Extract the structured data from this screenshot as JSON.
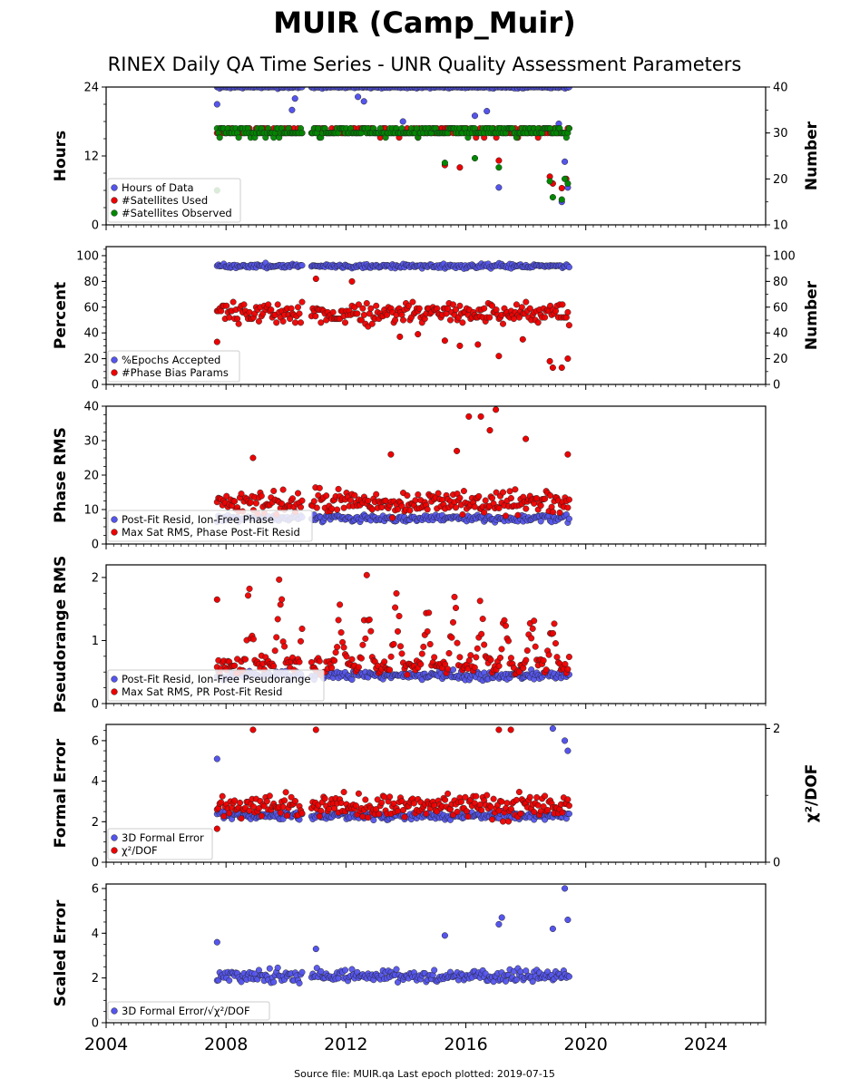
{
  "title": "MUIR (Camp_Muir)",
  "subtitle": "RINEX Daily QA Time Series - UNR Quality Assessment Parameters",
  "footer": "Source file: MUIR.qa Last epoch plotted: 2019-07-15",
  "colors": {
    "blue": "#5555ee",
    "red": "#ee0000",
    "green": "#008800"
  },
  "chart_data": [
    {
      "type": "scatter",
      "ylabel": "Hours",
      "y2label": "Number",
      "ylim": [
        0,
        24
      ],
      "yticks": [
        0,
        12,
        24
      ],
      "y2lim": [
        10,
        40
      ],
      "y2ticks": [
        10,
        20,
        30,
        40
      ],
      "xlim": [
        2004,
        2026
      ],
      "legend_position": "lower-left",
      "series": [
        {
          "name": "Hours of Data",
          "color": "blue",
          "axis": "left",
          "base": 24,
          "noise": 0.2,
          "start": 2007.7,
          "end": 2019.45,
          "outliers": [
            [
              2007.7,
              21
            ],
            [
              2010.2,
              20
            ],
            [
              2010.3,
              22
            ],
            [
              2012.4,
              22.3
            ],
            [
              2012.6,
              21.5
            ],
            [
              2013.9,
              18
            ],
            [
              2016.3,
              19
            ],
            [
              2016.7,
              19.8
            ],
            [
              2017.1,
              6.5
            ],
            [
              2019.1,
              17.6
            ],
            [
              2019.2,
              4
            ],
            [
              2019.3,
              11
            ],
            [
              2019.4,
              6.5
            ]
          ]
        },
        {
          "name": "#Satellites Used",
          "color": "red",
          "axis": "right",
          "base": 30.3,
          "noise": 0.7,
          "start": 2007.7,
          "end": 2019.45,
          "outliers": [
            [
              2015.3,
              23
            ],
            [
              2015.8,
              22.5
            ],
            [
              2017.1,
              24
            ],
            [
              2018.8,
              20.5
            ],
            [
              2018.9,
              19
            ],
            [
              2019.2,
              18
            ],
            [
              2019.35,
              20
            ]
          ]
        },
        {
          "name": "#Satellites Observed",
          "color": "green",
          "axis": "right",
          "base": 30.3,
          "noise": 0.8,
          "start": 2007.7,
          "end": 2019.45,
          "outliers": [
            [
              2007.7,
              17.5
            ],
            [
              2015.3,
              23.5
            ],
            [
              2016.3,
              24.5
            ],
            [
              2017.1,
              22.5
            ],
            [
              2018.8,
              19.5
            ],
            [
              2018.9,
              16
            ],
            [
              2019.2,
              15.5
            ],
            [
              2019.3,
              20
            ],
            [
              2019.4,
              19
            ]
          ]
        }
      ]
    },
    {
      "type": "scatter",
      "ylabel": "Percent",
      "y2label": "Number",
      "ylim": [
        0,
        107
      ],
      "yticks": [
        0,
        20,
        40,
        60,
        80,
        100
      ],
      "y2lim": [
        0,
        107
      ],
      "y2ticks": [
        0,
        20,
        40,
        60,
        80,
        100
      ],
      "xlim": [
        2004,
        2026
      ],
      "legend_position": "lower-left",
      "series": [
        {
          "name": "%Epochs Accepted",
          "color": "blue",
          "axis": "left",
          "base": 92,
          "noise": 1.5,
          "start": 2007.7,
          "end": 2019.45,
          "outliers": []
        },
        {
          "name": "#Phase Bias Params",
          "color": "red",
          "axis": "right",
          "base": 55,
          "noise": 7,
          "start": 2007.7,
          "end": 2019.45,
          "outliers": [
            [
              2007.7,
              33
            ],
            [
              2011.0,
              82
            ],
            [
              2012.2,
              80
            ],
            [
              2013.8,
              37
            ],
            [
              2014.4,
              39
            ],
            [
              2015.3,
              34
            ],
            [
              2015.8,
              30
            ],
            [
              2016.4,
              31
            ],
            [
              2017.1,
              22
            ],
            [
              2017.9,
              35
            ],
            [
              2018.8,
              18
            ],
            [
              2018.9,
              13
            ],
            [
              2019.2,
              13
            ],
            [
              2019.4,
              20
            ]
          ]
        }
      ]
    },
    {
      "type": "scatter",
      "ylabel": "Phase RMS",
      "ylim": [
        0,
        40
      ],
      "yticks": [
        0,
        10,
        20,
        30,
        40
      ],
      "xlim": [
        2004,
        2026
      ],
      "legend_position": "lower-left",
      "series": [
        {
          "name": "Post-Fit Resid, Ion-Free Phase",
          "color": "blue",
          "axis": "left",
          "base": 7.5,
          "noise": 0.8,
          "start": 2007.7,
          "end": 2019.45,
          "outliers": []
        },
        {
          "name": "Max Sat RMS, Phase Post-Fit Resid",
          "color": "red",
          "axis": "left",
          "base": 12,
          "noise": 3,
          "start": 2007.7,
          "end": 2019.45,
          "outliers": [
            [
              2008.9,
              25
            ],
            [
              2013.5,
              26
            ],
            [
              2015.7,
              27
            ],
            [
              2016.1,
              37
            ],
            [
              2016.5,
              37
            ],
            [
              2016.8,
              33
            ],
            [
              2017.0,
              39
            ],
            [
              2018.0,
              30.5
            ],
            [
              2019.4,
              26
            ]
          ]
        }
      ]
    },
    {
      "type": "scatter",
      "ylabel": "Pseudorange RMS",
      "ylim": [
        0,
        2.2
      ],
      "yticks": [
        0,
        1,
        2
      ],
      "xlim": [
        2004,
        2026
      ],
      "legend_position": "lower-left",
      "series": [
        {
          "name": "Post-Fit Resid, Ion-Free Pseudorange",
          "color": "blue",
          "axis": "left",
          "base": 0.45,
          "noise": 0.06,
          "start": 2007.7,
          "end": 2019.45,
          "outliers": []
        },
        {
          "name": "Max Sat RMS, PR Post-Fit Resid",
          "color": "red",
          "axis": "left",
          "base": 0.6,
          "noise": 0.12,
          "start": 2007.7,
          "end": 2019.45,
          "seasonal_peaks": [
            [
              2008.8,
              2.0
            ],
            [
              2009.8,
              2.05
            ],
            [
              2010.6,
              1.6
            ],
            [
              2011.8,
              2.0
            ],
            [
              2012.7,
              2.0
            ],
            [
              2013.7,
              2.1
            ],
            [
              2014.7,
              2.05
            ],
            [
              2015.6,
              1.75
            ],
            [
              2016.5,
              1.75
            ],
            [
              2017.3,
              1.7
            ],
            [
              2018.2,
              1.95
            ],
            [
              2018.9,
              1.8
            ]
          ],
          "outliers": [
            [
              2007.7,
              1.65
            ]
          ]
        }
      ]
    },
    {
      "type": "scatter",
      "ylabel": "Formal Error",
      "y2label": "χ²/DOF",
      "ylim": [
        0,
        6.8
      ],
      "yticks": [
        0,
        2,
        4,
        6
      ],
      "y2lim": [
        0,
        2.06
      ],
      "y2ticks": [
        0,
        2
      ],
      "xlim": [
        2004,
        2026
      ],
      "legend_position": "lower-left",
      "series": [
        {
          "name": "3D Formal Error",
          "color": "blue",
          "axis": "left",
          "base": 2.3,
          "noise": 0.15,
          "start": 2007.7,
          "end": 2019.45,
          "outliers": [
            [
              2007.7,
              5.1
            ],
            [
              2018.9,
              6.6
            ],
            [
              2019.3,
              6
            ],
            [
              2019.4,
              5.5
            ]
          ]
        },
        {
          "name": "χ²/DOF",
          "color": "red",
          "axis": "right",
          "base": 0.85,
          "noise": 0.15,
          "start": 2007.7,
          "end": 2019.45,
          "outliers": [
            [
              2008.9,
              1.98
            ],
            [
              2011.0,
              1.98
            ],
            [
              2017.1,
              1.98
            ],
            [
              2017.5,
              1.98
            ],
            [
              2007.7,
              0.5
            ]
          ]
        }
      ]
    },
    {
      "type": "scatter",
      "ylabel": "Scaled Error",
      "ylim": [
        0,
        6.2
      ],
      "yticks": [
        0,
        2,
        4,
        6
      ],
      "xlim": [
        2004,
        2026
      ],
      "xticks": [
        2004,
        2008,
        2012,
        2016,
        2020,
        2024
      ],
      "legend_position": "lower-left",
      "series": [
        {
          "name": "3D Formal Error/√χ²/DOF",
          "color": "blue",
          "axis": "left",
          "base": 2.1,
          "noise": 0.25,
          "start": 2007.7,
          "end": 2019.45,
          "outliers": [
            [
              2007.7,
              3.6
            ],
            [
              2011.0,
              3.3
            ],
            [
              2015.3,
              3.9
            ],
            [
              2017.1,
              4.4
            ],
            [
              2017.2,
              4.7
            ],
            [
              2018.9,
              4.2
            ],
            [
              2019.3,
              6.0
            ],
            [
              2019.4,
              4.6
            ]
          ]
        }
      ]
    }
  ]
}
